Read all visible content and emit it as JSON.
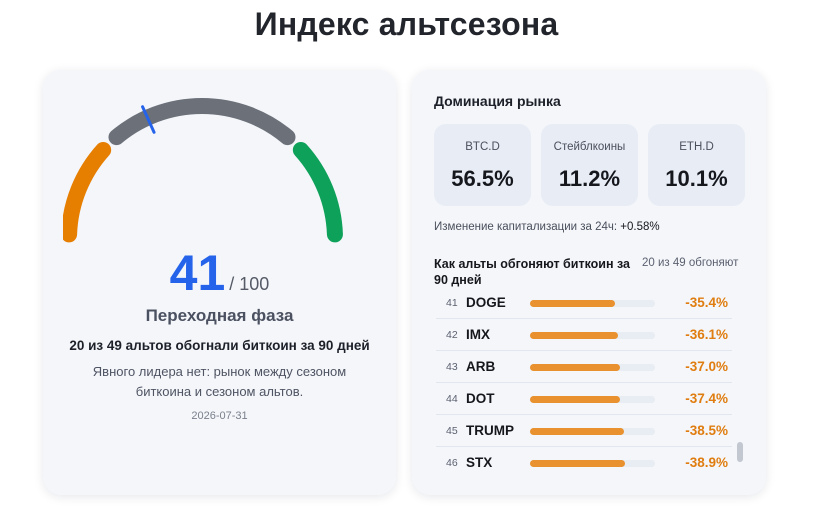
{
  "page": {
    "title": "Индекс альтсезона"
  },
  "gauge": {
    "value": "41",
    "max_label": "/ 100",
    "value_fraction": 0.41,
    "phase": "Переходная фаза",
    "summary": "20 из 49 альтов обогнали биткоин за 90 дней",
    "description": "Явного лидера нет: рынок между сезоном биткоина и сезоном альтов.",
    "date": "2026-07-31",
    "colors": {
      "low": "#e67e00",
      "mid": "#6b7079",
      "high": "#0ea15a",
      "needle": "#2563eb"
    }
  },
  "dominance": {
    "title": "Доминация рынка",
    "tiles": [
      {
        "label": "BTC.D",
        "value": "56.5%"
      },
      {
        "label": "Стейблкоины",
        "value": "11.2%"
      },
      {
        "label": "ETH.D",
        "value": "10.1%"
      }
    ],
    "change_label": "Изменение капитализации за 24ч:",
    "change_value": "+0.58%"
  },
  "ranking": {
    "title": "Как альты обгоняют биткоин за 90 дней",
    "count": "20 из 49 обгоняют",
    "rows": [
      {
        "rank": "41",
        "symbol": "DOGE",
        "change": "-35.4%",
        "bar": 0.68
      },
      {
        "rank": "42",
        "symbol": "IMX",
        "change": "-36.1%",
        "bar": 0.7
      },
      {
        "rank": "43",
        "symbol": "ARB",
        "change": "-37.0%",
        "bar": 0.72
      },
      {
        "rank": "44",
        "symbol": "DOT",
        "change": "-37.4%",
        "bar": 0.72
      },
      {
        "rank": "45",
        "symbol": "TRUMP",
        "change": "-38.5%",
        "bar": 0.75
      },
      {
        "rank": "46",
        "symbol": "STX",
        "change": "-38.9%",
        "bar": 0.76
      }
    ],
    "accent": "#e8912e"
  }
}
